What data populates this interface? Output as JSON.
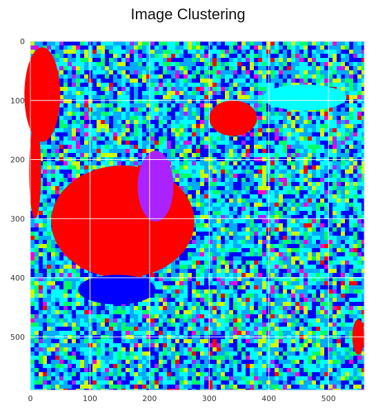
{
  "chart_data": {
    "type": "heatmap",
    "title": "Image Clustering",
    "xlabel": "",
    "ylabel": "",
    "x_ticks": [
      "0",
      "100",
      "200",
      "300",
      "400",
      "500"
    ],
    "y_ticks": [
      "0",
      "100",
      "200",
      "300",
      "400",
      "500"
    ],
    "xlim": [
      0,
      560
    ],
    "ylim": [
      590,
      0
    ],
    "grid": true,
    "grid_color": "#ffffff",
    "cluster_colors": [
      "#ff0000",
      "#00ffff",
      "#0000ff",
      "#00aaff",
      "#00ff66",
      "#ccff00",
      "#aa22ff",
      "#ff00cc"
    ],
    "regions": [
      {
        "cluster": 0,
        "description_shape": "large lake",
        "cx": 155,
        "cy": 305,
        "rx": 120,
        "ry": 95
      },
      {
        "cluster": 0,
        "description_shape": "top-left water body",
        "cx": 20,
        "cy": 90,
        "rx": 30,
        "ry": 80
      },
      {
        "cluster": 0,
        "description_shape": "left edge water",
        "cx": 8,
        "cy": 220,
        "rx": 10,
        "ry": 80
      },
      {
        "cluster": 0,
        "description_shape": "top-center pond",
        "cx": 340,
        "cy": 130,
        "rx": 40,
        "ry": 30
      },
      {
        "cluster": 0,
        "description_shape": "top-right pond",
        "cx": 440,
        "cy": 95,
        "rx": 45,
        "ry": 20
      },
      {
        "cluster": 0,
        "description_shape": "bottom-right patch",
        "cx": 550,
        "cy": 500,
        "rx": 10,
        "ry": 30
      },
      {
        "cluster": 6,
        "description_shape": "lake shore",
        "cx": 210,
        "cy": 245,
        "rx": 30,
        "ry": 60
      },
      {
        "cluster": 2,
        "description_shape": "blue shore",
        "cx": 145,
        "cy": 420,
        "rx": 65,
        "ry": 25
      },
      {
        "cluster": 1,
        "description_shape": "river band",
        "cx": 460,
        "cy": 95,
        "rx": 70,
        "ry": 22
      }
    ]
  }
}
